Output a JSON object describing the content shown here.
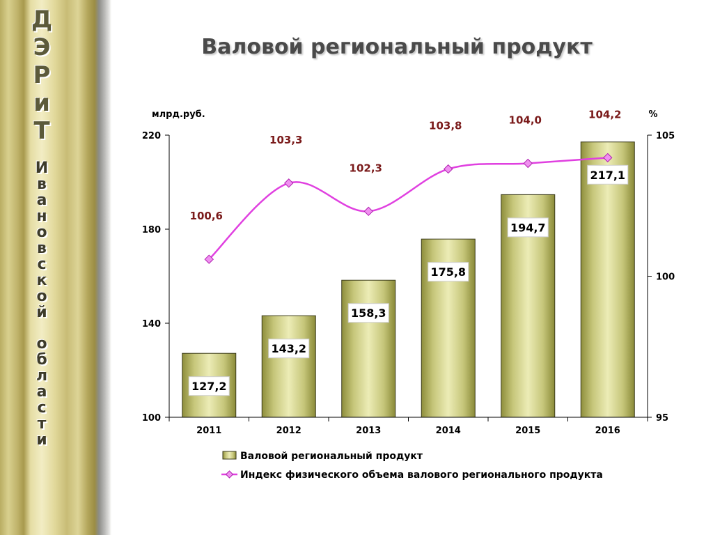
{
  "side_banner": {
    "abbr": [
      "Д",
      "Э",
      "Р",
      "и",
      "Т"
    ],
    "region_word1": [
      "И",
      "в",
      "а",
      "н",
      "о",
      "в",
      "с",
      "к",
      "о",
      "й"
    ],
    "region_word2": [
      "о",
      "б",
      "л",
      "а",
      "с",
      "т",
      "и"
    ]
  },
  "chart_data": {
    "type": "bar+line",
    "title": "Валовой региональный продукт",
    "categories": [
      "2011",
      "2012",
      "2013",
      "2014",
      "2015",
      "2016"
    ],
    "series": [
      {
        "name": "Валовой региональный продукт",
        "type": "bar",
        "axis": "left",
        "values": [
          127.2,
          143.2,
          158.3,
          175.8,
          194.7,
          217.1
        ],
        "labels": [
          "127,2",
          "143,2",
          "158,3",
          "175,8",
          "194,7",
          "217,1"
        ]
      },
      {
        "name": "Индекс физического объема валового регионального продукта",
        "type": "line",
        "axis": "right",
        "values": [
          100.6,
          103.3,
          102.3,
          103.8,
          104.0,
          104.2
        ],
        "labels": [
          "100,6",
          "103,3",
          "102,3",
          "103,8",
          "104,0",
          "104,2"
        ]
      }
    ],
    "y_left": {
      "unit_label": "млрд.руб.",
      "range": [
        100,
        220
      ],
      "ticks": [
        100,
        140,
        180,
        220
      ]
    },
    "y_right": {
      "unit_label": "%",
      "range": [
        95,
        105
      ],
      "ticks": [
        95,
        100,
        105
      ]
    },
    "legend_position": "bottom",
    "grid": false,
    "colors": {
      "bar_dark": "#9a9a48",
      "bar_light": "#e8e8b0",
      "line": "#e040e0",
      "marker": "#f090f0",
      "line_label": "#7a1a1a"
    }
  }
}
